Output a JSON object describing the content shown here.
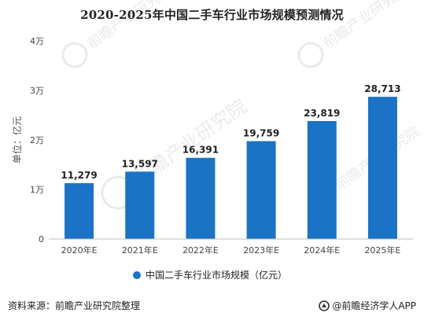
{
  "chart_data": {
    "type": "bar",
    "title": "2020-2025年中国二手车行业市场规模预测情况",
    "ylabel": "单位：亿元",
    "categories": [
      "2020年E",
      "2021年E",
      "2022年E",
      "2023年E",
      "2024年E",
      "2025年E"
    ],
    "series": [
      {
        "name": "中国二手车行业市场规模（亿元）",
        "values": [
          11279,
          13597,
          16391,
          19759,
          23819,
          28713
        ],
        "value_labels": [
          "11,279",
          "13,597",
          "16,391",
          "19,759",
          "23,819",
          "28,713"
        ]
      }
    ],
    "ylim": [
      0,
      40000
    ],
    "yticks": [
      0,
      10000,
      20000,
      30000,
      40000
    ],
    "ytick_labels": [
      "0",
      "1万",
      "2万",
      "3万",
      "4万"
    ],
    "grid": false,
    "legend_position": "bottom-center",
    "bar_color": "#1a73c4"
  },
  "footer": {
    "source": "资料来源：前瞻产业研究院整理",
    "brand": "@前瞻经济学人APP"
  },
  "watermark": {
    "main": "前瞻产业研究院",
    "sub": "QIANZHAN.COM"
  }
}
